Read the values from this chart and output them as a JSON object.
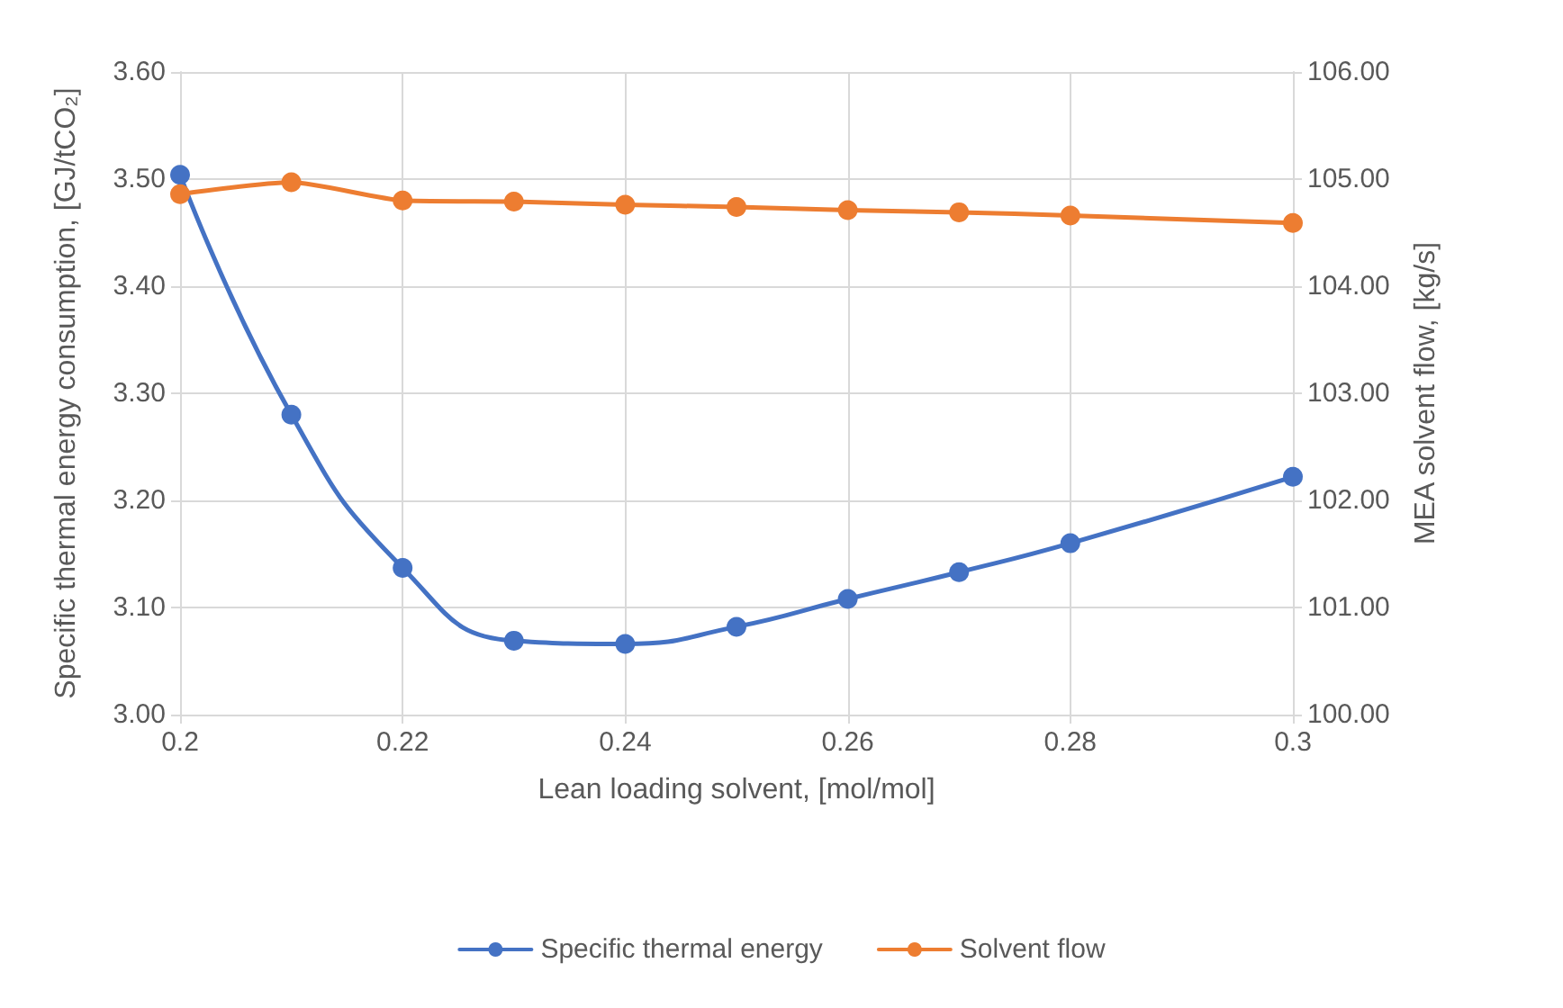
{
  "chart_data": {
    "type": "line",
    "x": [
      0.2,
      0.21,
      0.22,
      0.23,
      0.24,
      0.25,
      0.26,
      0.27,
      0.28,
      0.3
    ],
    "series": [
      {
        "name": "Specific thermal energy",
        "color": "#4472c4",
        "values": [
          3.504,
          3.28,
          3.137,
          3.069,
          3.066,
          3.082,
          3.108,
          3.133,
          3.16,
          3.222
        ]
      },
      {
        "name": "Solvent flow",
        "color": "#ed7d31",
        "axis": "y2",
        "values": [
          104.86,
          104.97,
          104.8,
          104.79,
          104.76,
          104.74,
          104.71,
          104.69,
          104.66,
          104.59
        ]
      }
    ],
    "xlabel": "Lean loading solvent, [mol/mol]",
    "ylabel": "Specific thermal energy consumption, [GJ/tCO₂]",
    "y2label": "MEA solvent flow, [kg/s]",
    "xlim": [
      0.2,
      0.3
    ],
    "xticks": [
      {
        "value": 0.2,
        "label": "0.2"
      },
      {
        "value": 0.22,
        "label": "0.22"
      },
      {
        "value": 0.24,
        "label": "0.24"
      },
      {
        "value": 0.26,
        "label": "0.26"
      },
      {
        "value": 0.28,
        "label": "0.28"
      },
      {
        "value": 0.3,
        "label": "0.3"
      }
    ],
    "ylim": [
      3.0,
      3.6
    ],
    "yticks": [
      {
        "value": 3.0,
        "label": "3.00"
      },
      {
        "value": 3.1,
        "label": "3.10"
      },
      {
        "value": 3.2,
        "label": "3.20"
      },
      {
        "value": 3.3,
        "label": "3.30"
      },
      {
        "value": 3.4,
        "label": "3.40"
      },
      {
        "value": 3.5,
        "label": "3.50"
      },
      {
        "value": 3.6,
        "label": "3.60"
      }
    ],
    "y2lim": [
      100,
      106
    ],
    "y2ticks": [
      {
        "value": 100,
        "label": "100.00"
      },
      {
        "value": 101,
        "label": "101.00"
      },
      {
        "value": 102,
        "label": "102.00"
      },
      {
        "value": 103,
        "label": "103.00"
      },
      {
        "value": 104,
        "label": "104.00"
      },
      {
        "value": 105,
        "label": "105.00"
      },
      {
        "value": 106,
        "label": "106.00"
      }
    ],
    "legend": "bottom",
    "grid": true,
    "marker": "circle",
    "line_style": "solid"
  }
}
